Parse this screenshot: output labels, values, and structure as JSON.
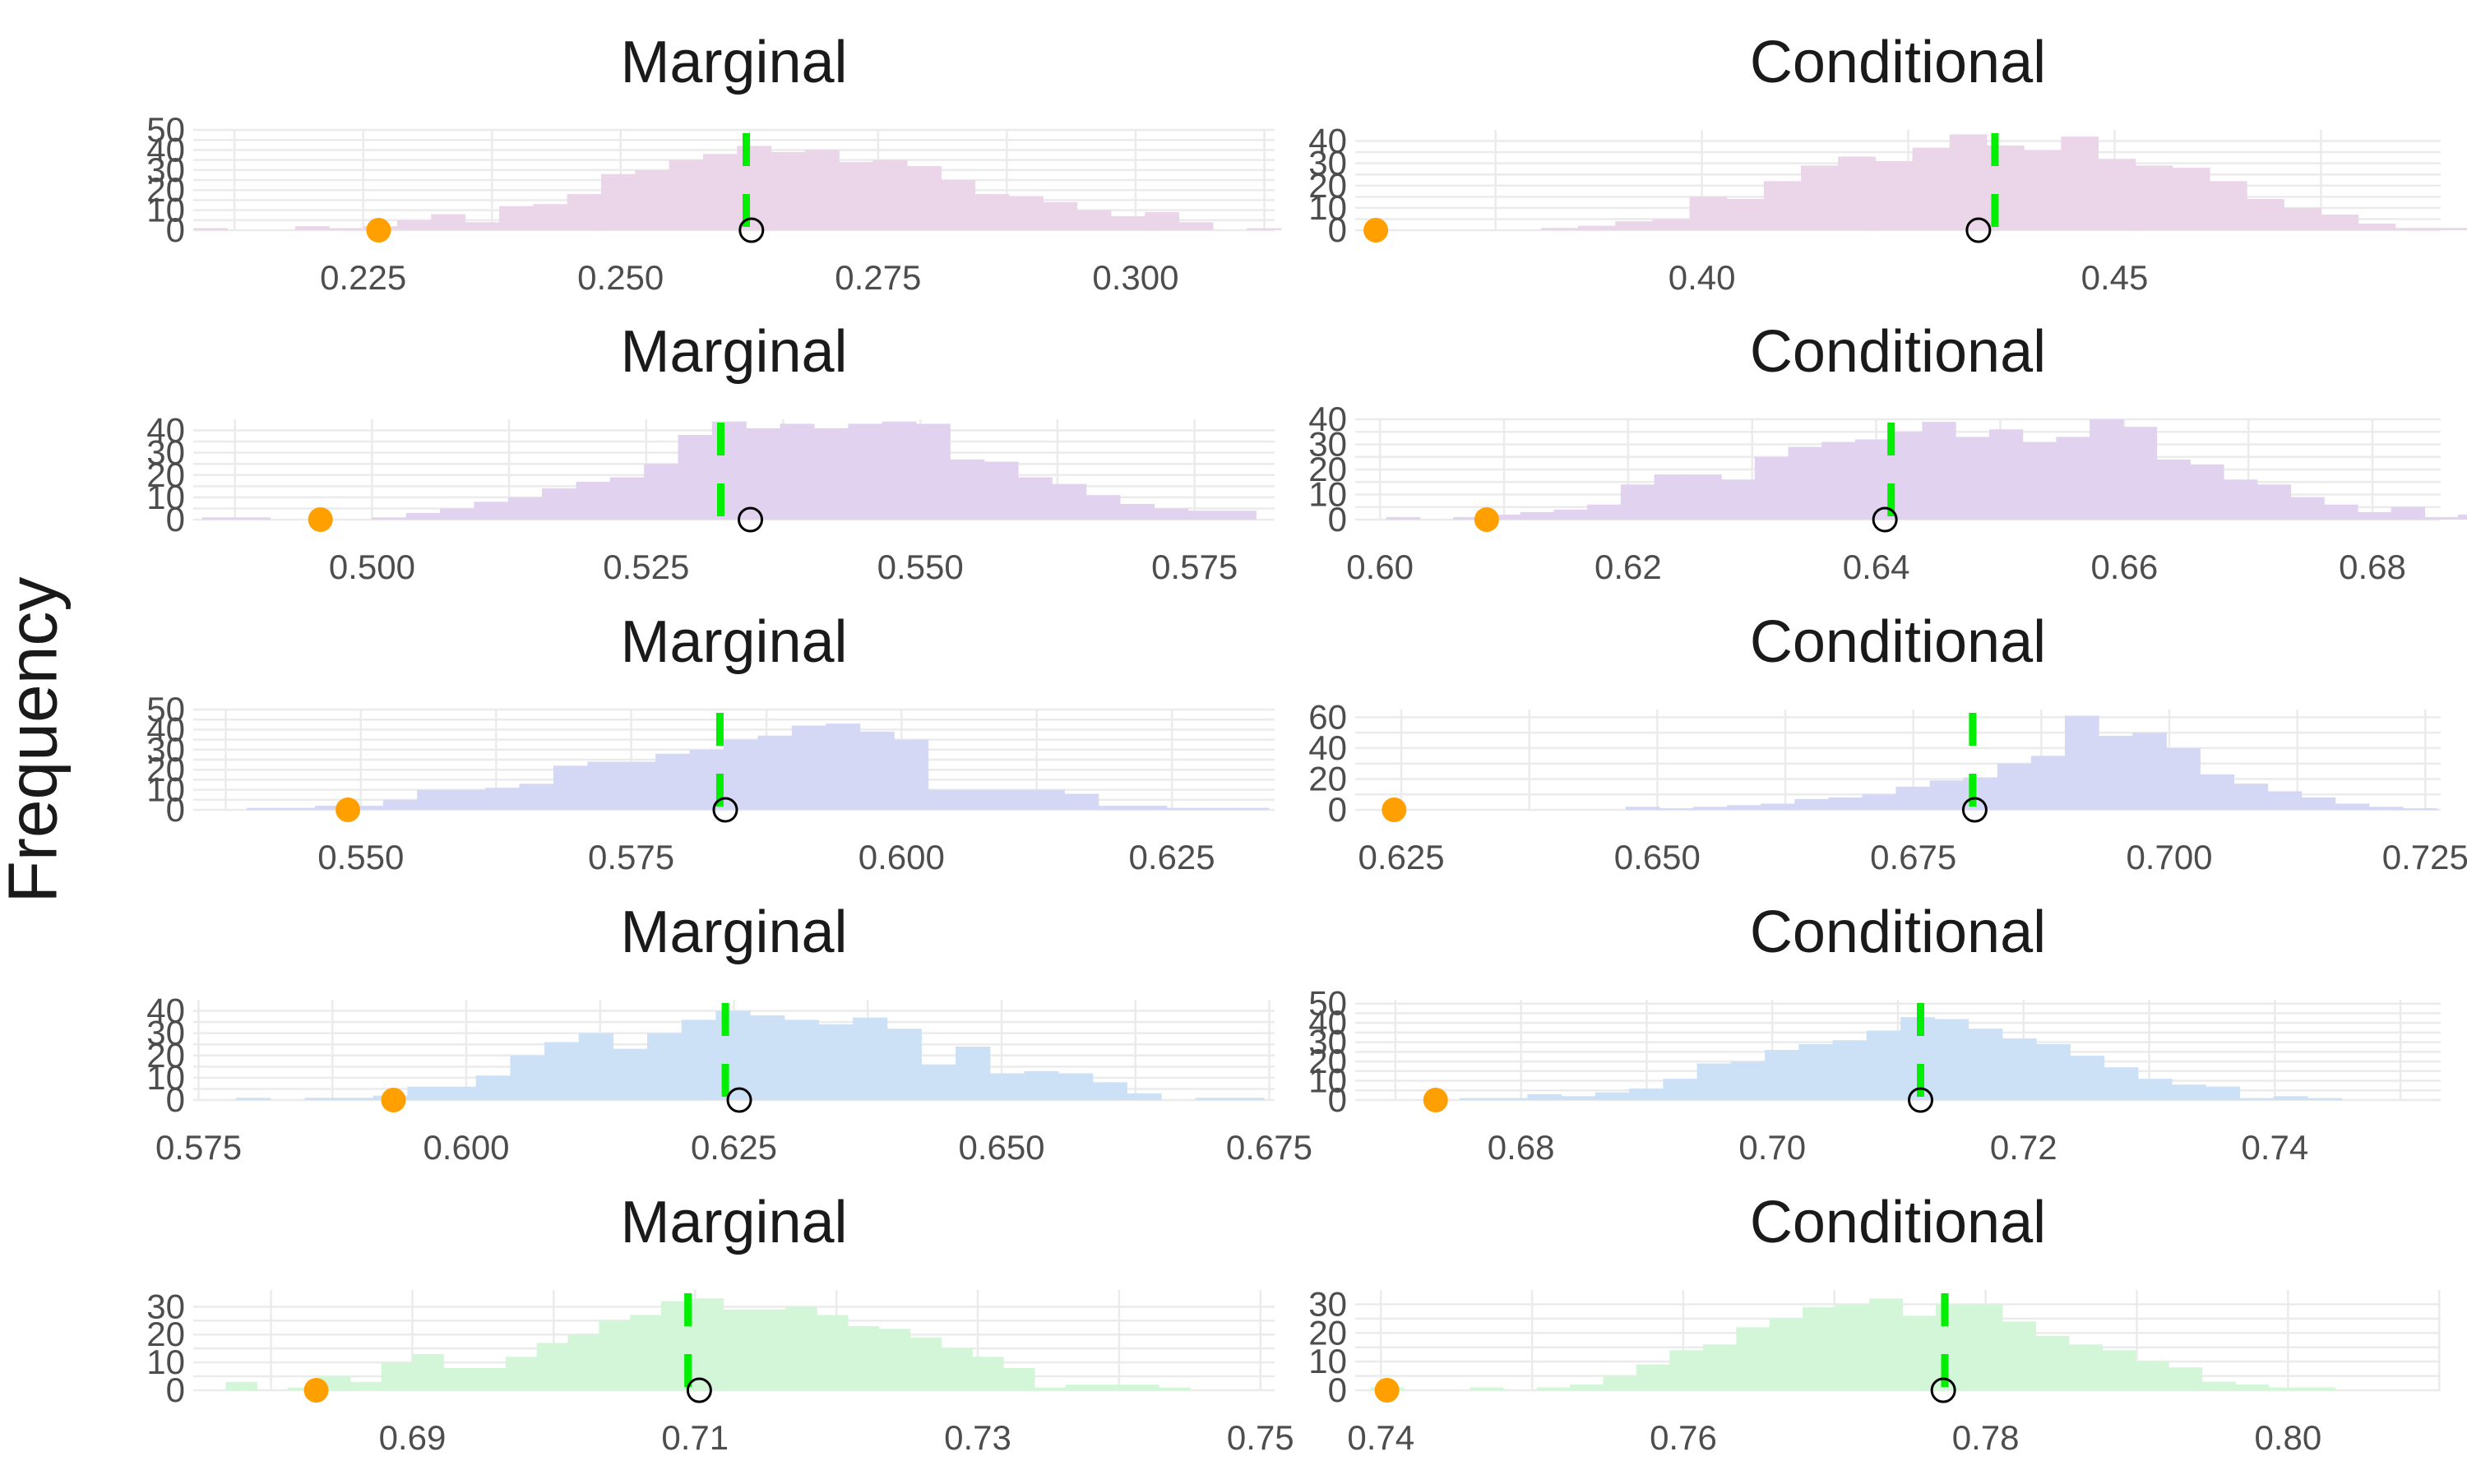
{
  "ylabel": "Frequency",
  "colors": {
    "fills": [
      "#ebd5e9",
      "#e1d3ef",
      "#d5d8f5",
      "#cde1f6",
      "#d3f6d9"
    ],
    "mean_line": "#00ee00",
    "observed_point": "#ff9f00",
    "center_point_fill": "#ffffff",
    "center_point_stroke": "#000000",
    "grid": "#ebebeb",
    "tick_text": "#4d4d4d",
    "title_text": "#1a1a1a"
  },
  "chart_data": [
    {
      "type": "histogram",
      "title": "Marginal",
      "row": 0,
      "col": 0,
      "xlim": [
        0.2085,
        0.3135
      ],
      "ylim": [
        0,
        50
      ],
      "xticks": [
        "0.225",
        "0.250",
        "0.275",
        "0.300"
      ],
      "yticks": [
        "0",
        "10",
        "20",
        "30",
        "40",
        "50"
      ],
      "bin_start": 0.2085,
      "bin_width": 0.0033,
      "counts": [
        1,
        0,
        0,
        2,
        1,
        2,
        5,
        8,
        4,
        12,
        13,
        18,
        28,
        30,
        35,
        38,
        42,
        39,
        40,
        34,
        35,
        32,
        25,
        18,
        17,
        14,
        10,
        7,
        9,
        4,
        0,
        1
      ],
      "mean_line": 0.2622,
      "center_point": 0.2627,
      "observed_point": 0.2265
    },
    {
      "type": "histogram",
      "title": "Conditional",
      "row": 0,
      "col": 1,
      "xlim": [
        0.358,
        0.4895
      ],
      "ylim": [
        0,
        45
      ],
      "xticks": [
        "0.40",
        "0.45"
      ],
      "yticks": [
        "0",
        "10",
        "20",
        "30",
        "40"
      ],
      "bin_start": 0.358,
      "bin_width": 0.0045,
      "counts": [
        0,
        0,
        0,
        0,
        0,
        1,
        2,
        4,
        5,
        15,
        14,
        22,
        29,
        33,
        31,
        37,
        43,
        38,
        36,
        42,
        32,
        29,
        28,
        22,
        14,
        10,
        7,
        3,
        1,
        1
      ],
      "mean_line": 0.4355,
      "center_point": 0.4335,
      "observed_point": 0.3605
    },
    {
      "type": "histogram",
      "title": "Marginal",
      "row": 1,
      "col": 0,
      "xlim": [
        0.4837,
        0.5823
      ],
      "ylim": [
        0,
        45
      ],
      "xticks": [
        "0.500",
        "0.525",
        "0.550",
        "0.575"
      ],
      "yticks": [
        "0",
        "10",
        "20",
        "30",
        "40"
      ],
      "bin_start": 0.4845,
      "bin_width": 0.0031,
      "counts": [
        1,
        1,
        0,
        0,
        0,
        1,
        3,
        5,
        8,
        10,
        14,
        17,
        19,
        25,
        38,
        44,
        41,
        43,
        41,
        43,
        44,
        43,
        27,
        26,
        19,
        16,
        11,
        7,
        5,
        4,
        4,
        0
      ],
      "mean_line": 0.5318,
      "center_point": 0.5345,
      "observed_point": 0.4953
    },
    {
      "type": "histogram",
      "title": "Conditional",
      "row": 1,
      "col": 1,
      "xlim": [
        0.598,
        0.6855
      ],
      "ylim": [
        0,
        40
      ],
      "xticks": [
        "0.60",
        "0.62",
        "0.64",
        "0.66",
        "0.68"
      ],
      "yticks": [
        "0",
        "10",
        "20",
        "30",
        "40"
      ],
      "bin_start": 0.5978,
      "bin_width": 0.0027,
      "counts": [
        0,
        1,
        0,
        1,
        2,
        3,
        4,
        6,
        14,
        18,
        18,
        16,
        25,
        29,
        31,
        32,
        35,
        39,
        33,
        36,
        31,
        33,
        40,
        37,
        24,
        22,
        16,
        14,
        9,
        6,
        3,
        5,
        1,
        2,
        1
      ],
      "mean_line": 0.6412,
      "center_point": 0.6407,
      "observed_point": 0.6086
    },
    {
      "type": "histogram",
      "title": "Marginal",
      "row": 2,
      "col": 0,
      "xlim": [
        0.5345,
        0.6345
      ],
      "ylim": [
        0,
        50
      ],
      "xticks": [
        "0.550",
        "0.575",
        "0.600",
        "0.625"
      ],
      "yticks": [
        "0",
        "10",
        "20",
        "30",
        "40",
        "50"
      ],
      "bin_start": 0.5363,
      "bin_width": 0.00315,
      "counts": [
        0,
        1,
        1,
        2,
        2,
        5,
        10,
        10,
        11,
        13,
        22,
        24,
        24,
        28,
        30,
        35,
        37,
        42,
        43,
        39,
        35,
        10,
        10,
        10,
        10,
        8,
        2,
        2,
        1,
        1,
        1
      ],
      "mean_line": 0.5832,
      "center_point": 0.5837,
      "observed_point": 0.5488
    },
    {
      "type": "histogram",
      "title": "Conditional",
      "row": 2,
      "col": 1,
      "xlim": [
        0.6205,
        0.7265
      ],
      "ylim": [
        0,
        65
      ],
      "xticks": [
        "0.625",
        "0.650",
        "0.675",
        "0.700",
        "0.725"
      ],
      "yticks": [
        "0",
        "20",
        "40",
        "60"
      ],
      "bin_start": 0.6205,
      "bin_width": 0.0033,
      "counts": [
        0,
        0,
        0,
        0,
        0,
        0,
        0,
        0,
        2,
        1,
        2,
        3,
        4,
        7,
        8,
        10,
        15,
        19,
        21,
        30,
        35,
        61,
        48,
        50,
        40,
        23,
        17,
        12,
        8,
        4,
        2,
        1,
        0
      ],
      "mean_line": 0.6808,
      "center_point": 0.681,
      "observed_point": 0.6243
    },
    {
      "type": "histogram",
      "title": "Marginal",
      "row": 3,
      "col": 0,
      "xlim": [
        0.5745,
        0.6755
      ],
      "ylim": [
        0,
        45
      ],
      "xticks": [
        "0.575",
        "0.600",
        "0.625",
        "0.650",
        "0.675"
      ],
      "yticks": [
        "0",
        "10",
        "20",
        "30",
        "40"
      ],
      "bin_start": 0.5753,
      "bin_width": 0.0032,
      "counts": [
        0,
        1,
        0,
        1,
        1,
        2,
        6,
        6,
        11,
        20,
        26,
        30,
        23,
        30,
        36,
        40,
        38,
        36,
        34,
        37,
        32,
        16,
        24,
        12,
        13,
        12,
        8,
        3,
        0,
        1,
        1
      ],
      "mean_line": 0.6242,
      "center_point": 0.6255,
      "observed_point": 0.5932
    },
    {
      "type": "histogram",
      "title": "Conditional",
      "row": 3,
      "col": 1,
      "xlim": [
        0.6668,
        0.7532
      ],
      "ylim": [
        0,
        52
      ],
      "xticks": [
        "0.68",
        "0.70",
        "0.72",
        "0.74"
      ],
      "yticks": [
        "0",
        "10",
        "20",
        "30",
        "40",
        "50"
      ],
      "bin_start": 0.667,
      "bin_width": 0.0027,
      "counts": [
        0,
        0,
        0,
        1,
        1,
        3,
        2,
        4,
        6,
        11,
        19,
        20,
        26,
        29,
        31,
        36,
        43,
        42,
        37,
        32,
        29,
        23,
        17,
        11,
        8,
        7,
        1,
        2,
        1,
        0,
        0
      ],
      "mean_line": 0.7118,
      "center_point": 0.7118,
      "observed_point": 0.6732
    },
    {
      "type": "histogram",
      "title": "Marginal",
      "row": 4,
      "col": 0,
      "xlim": [
        0.6745,
        0.751
      ],
      "ylim": [
        0,
        36
      ],
      "xticks": [
        "0.69",
        "0.71",
        "0.73",
        "0.75"
      ],
      "yticks": [
        "0",
        "10",
        "20",
        "30"
      ],
      "bin_start": 0.6768,
      "bin_width": 0.0022,
      "counts": [
        3,
        0,
        1,
        5,
        3,
        10,
        13,
        8,
        8,
        12,
        17,
        20,
        25,
        27,
        32,
        33,
        29,
        29,
        30,
        27,
        23,
        22,
        19,
        15,
        12,
        8,
        1,
        2,
        2,
        2,
        1,
        0
      ],
      "mean_line": 0.7095,
      "center_point": 0.7103,
      "observed_point": 0.6832
    },
    {
      "type": "histogram",
      "title": "Conditional",
      "row": 4,
      "col": 1,
      "xlim": [
        0.7383,
        0.8101
      ],
      "ylim": [
        0,
        35
      ],
      "xticks": [
        "0.74",
        "0.76",
        "0.78",
        "0.80"
      ],
      "yticks": [
        "0",
        "10",
        "20",
        "30"
      ],
      "bin_start": 0.7393,
      "bin_width": 0.0022,
      "counts": [
        1,
        0,
        0,
        1,
        0,
        1,
        2,
        5,
        9,
        14,
        16,
        22,
        25,
        29,
        30,
        32,
        26,
        30,
        30,
        24,
        19,
        16,
        14,
        10,
        8,
        3,
        2,
        1,
        1,
        0,
        0,
        0
      ],
      "mean_line": 0.7773,
      "center_point": 0.7772,
      "observed_point": 0.7404
    }
  ]
}
